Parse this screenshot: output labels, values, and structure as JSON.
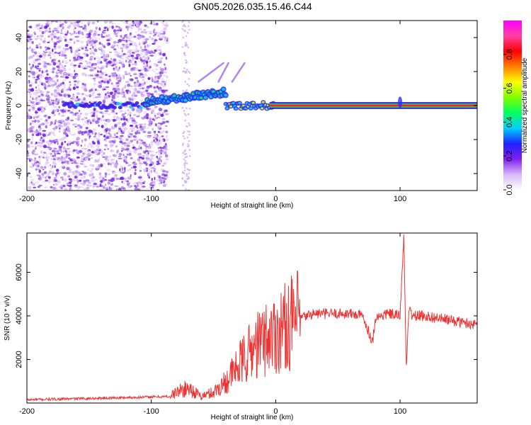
{
  "chart_data": [
    {
      "type": "heatmap",
      "title": "GN05.2026.035.15.46.C44",
      "xlabel": "Height of straight line (km)",
      "ylabel": "Frequency (Hz)",
      "xlim": [
        -200,
        162
      ],
      "ylim": [
        -50,
        50
      ],
      "xticks": [
        -200,
        -100,
        0,
        100
      ],
      "yticks": [
        -40,
        -20,
        0,
        20,
        40
      ],
      "colorbar": {
        "label": "Normalized spectral amplitude",
        "range": [
          0,
          1
        ],
        "ticks": [
          "0.0",
          "0.2",
          "0.4",
          "0.6",
          "0.8"
        ],
        "colors": [
          "#ffffff",
          "#d8b8f8",
          "#8020f0",
          "#2020ff",
          "#00d0ff",
          "#00ff60",
          "#80ff00",
          "#ffff00",
          "#ff8000",
          "#ff0000",
          "#ff40a0",
          "#ff00ff"
        ]
      },
      "features": [
        {
          "name": "carrier-line",
          "x_range": [
            -5,
            162
          ],
          "freq_hz": 0,
          "amplitude": "high"
        },
        {
          "name": "noise-region",
          "x_range": [
            -200,
            -95
          ],
          "freq_range": [
            -50,
            50
          ],
          "amplitude": "low"
        },
        {
          "name": "rising-tone",
          "x_range": [
            -105,
            -40
          ],
          "freq_range": [
            0,
            10
          ],
          "amplitude": "medium"
        }
      ]
    },
    {
      "type": "line",
      "xlabel": "Height of straight line (km)",
      "ylabel": "SNR (10 * v/v)",
      "xlim": [
        -200,
        162
      ],
      "ylim": [
        0,
        7800
      ],
      "xticks": [
        -200,
        -100,
        0,
        100
      ],
      "yticks": [
        2000,
        4000,
        6000
      ],
      "color": "#ee3333",
      "series": [
        {
          "name": "SNR",
          "x": [
            -200,
            -160,
            -120,
            -85,
            -80,
            -70,
            -60,
            -50,
            -40,
            -30,
            -20,
            -10,
            0,
            10,
            20,
            30,
            40,
            50,
            60,
            70,
            78,
            80,
            90,
            100,
            103,
            105,
            107,
            110,
            120,
            130,
            140,
            150,
            162
          ],
          "y": [
            150,
            200,
            250,
            300,
            500,
            700,
            300,
            500,
            1000,
            1700,
            2400,
            2900,
            3200,
            3600,
            3900,
            4100,
            4100,
            4100,
            4100,
            4000,
            2800,
            3900,
            4100,
            4000,
            7800,
            1500,
            4300,
            4000,
            4000,
            3900,
            3800,
            3700,
            3600
          ]
        }
      ]
    }
  ]
}
